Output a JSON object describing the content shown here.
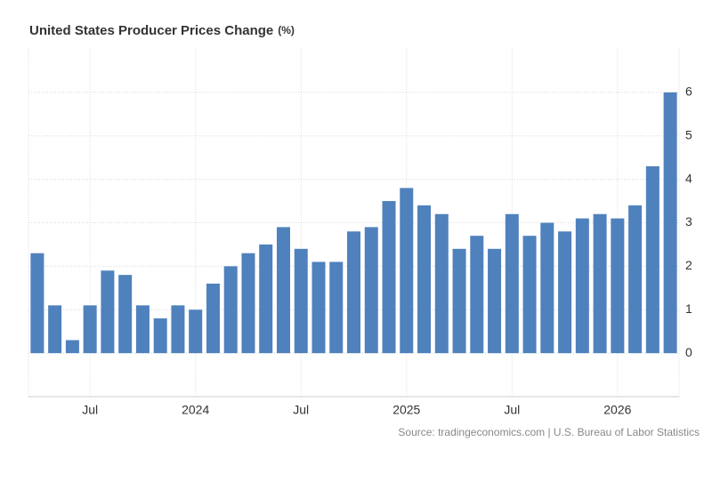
{
  "chart_data": {
    "type": "bar",
    "title": "United States Producer Prices Change",
    "unit": "(%)",
    "source": "Source: tradingeconomics.com | U.S. Bureau of Labor Statistics",
    "categories": [
      null,
      null,
      null,
      "Jul",
      null,
      null,
      null,
      null,
      null,
      "2024",
      null,
      null,
      null,
      null,
      null,
      "Jul",
      null,
      null,
      null,
      null,
      null,
      "2025",
      null,
      null,
      null,
      null,
      null,
      "Jul",
      null,
      null,
      null,
      null,
      null,
      "2026",
      null,
      null,
      null
    ],
    "values": [
      2.3,
      1.1,
      0.3,
      1.1,
      1.9,
      1.8,
      1.1,
      0.8,
      1.1,
      1.0,
      1.6,
      2.0,
      2.3,
      2.5,
      2.9,
      2.4,
      2.1,
      2.1,
      2.8,
      2.9,
      3.5,
      3.8,
      3.4,
      3.2,
      2.4,
      2.7,
      2.4,
      3.2,
      2.7,
      3.0,
      2.8,
      3.1,
      3.2,
      3.1,
      3.4,
      4.3,
      6.0
    ],
    "color": "#4f81bd",
    "ylim": [
      -1,
      7
    ],
    "yticks": [
      0,
      1,
      2,
      3,
      4,
      5,
      6
    ],
    "grid": true
  }
}
